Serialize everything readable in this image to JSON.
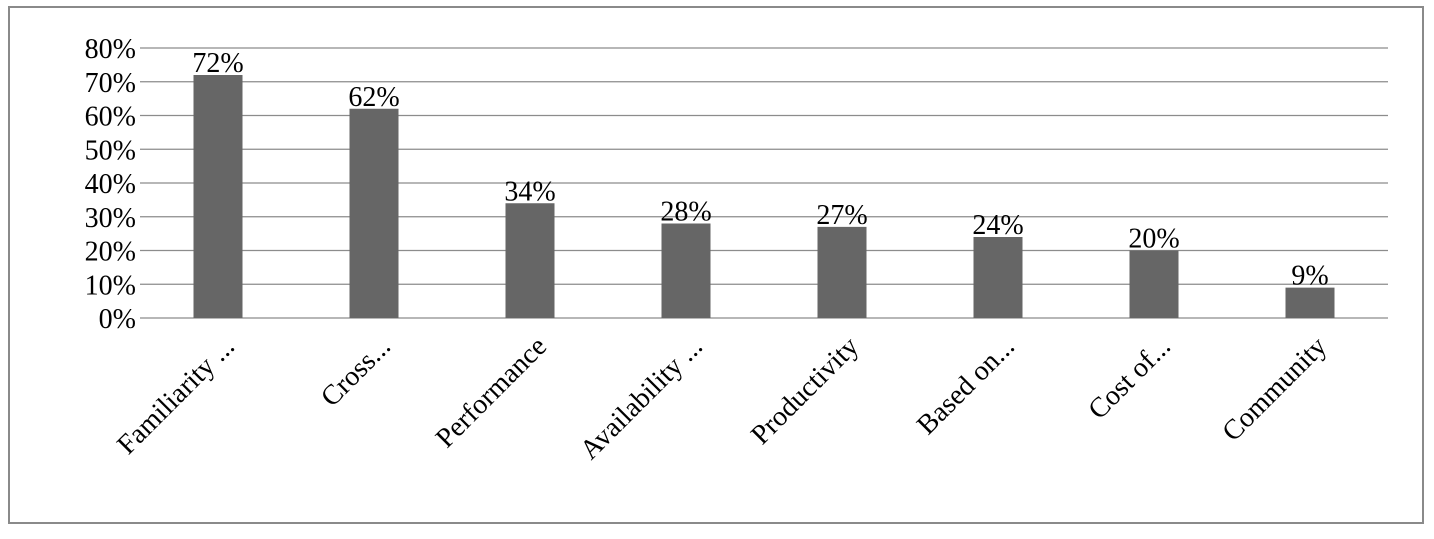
{
  "chart_data": {
    "type": "bar",
    "categories": [
      "Familiarity ...",
      "Cross...",
      "Performance",
      "Availability ...",
      "Productivity",
      "Based on...",
      "Cost of...",
      "Community"
    ],
    "values": [
      72,
      62,
      34,
      28,
      27,
      24,
      20,
      9
    ],
    "data_labels": [
      "72%",
      "62%",
      "34%",
      "28%",
      "27%",
      "24%",
      "20%",
      "9%"
    ],
    "ylim": [
      0,
      80
    ],
    "yticks": [
      0,
      10,
      20,
      30,
      40,
      50,
      60,
      70,
      80
    ],
    "ytick_labels": [
      "0%",
      "10%",
      "20%",
      "30%",
      "40%",
      "50%",
      "60%",
      "70%",
      "80%"
    ],
    "title": "",
    "xlabel": "",
    "ylabel": "",
    "grid": true,
    "legend": "none",
    "bar_color": "#666666",
    "grid_color": "#8c8c8c",
    "x_tick_rotation": -45
  }
}
